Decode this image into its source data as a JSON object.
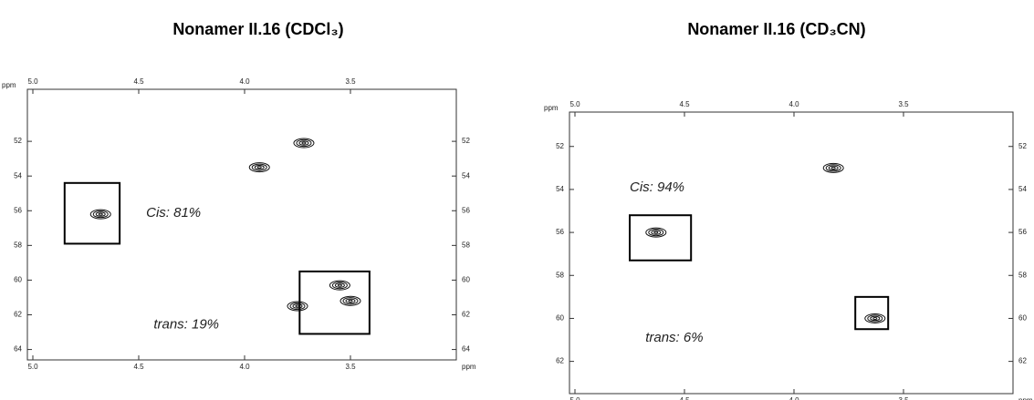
{
  "chart_data": [
    {
      "type": "scatter",
      "title": "Nonamer II.16 (CDCl₃)",
      "x_label": "ppm",
      "y_label": "ppm",
      "x": [
        4.68,
        3.93,
        3.55,
        3.5,
        3.75,
        3.72
      ],
      "y": [
        56.2,
        53.5,
        60.3,
        61.2,
        61.5,
        52.1
      ],
      "color": "#111111",
      "xlim": [
        5.0,
        3.0
      ],
      "ylim": [
        49,
        64.6
      ],
      "xticks": [
        {
          "value": 5,
          "label": "5.0"
        },
        4.5,
        {
          "value": 4,
          "label": "4.0"
        },
        3.5
      ],
      "yticks": [
        52,
        54,
        56,
        58,
        60,
        62,
        64
      ],
      "boxes": [
        {
          "x": [
            4.85,
            4.59
          ],
          "y": [
            54.4,
            57.9
          ],
          "label": "Cis: 81%"
        },
        {
          "x": [
            3.74,
            3.41
          ],
          "y": [
            59.5,
            63.1
          ],
          "label": "trans: 19%"
        }
      ]
    },
    {
      "type": "scatter",
      "title": "Nonamer II.16 (CD₃CN)",
      "x_label": "ppm",
      "y_label": "ppm",
      "x": [
        4.63,
        3.82,
        3.63
      ],
      "y": [
        56.0,
        53.0,
        60.0
      ],
      "color": "#111111",
      "xlim": [
        5.0,
        3.0
      ],
      "ylim": [
        50.4,
        63.5
      ],
      "xticks": [
        {
          "value": 5,
          "label": "5.0"
        },
        4.5,
        {
          "value": 4,
          "label": "4.0"
        },
        3.5
      ],
      "yticks": [
        52,
        54,
        56,
        58,
        60,
        62
      ],
      "boxes": [
        {
          "x": [
            4.75,
            4.47
          ],
          "y": [
            55.2,
            57.3
          ],
          "label": "Cis: 94%"
        },
        {
          "x": [
            3.72,
            3.57
          ],
          "y": [
            59.0,
            60.5
          ],
          "label": "trans: 6%"
        }
      ]
    }
  ]
}
